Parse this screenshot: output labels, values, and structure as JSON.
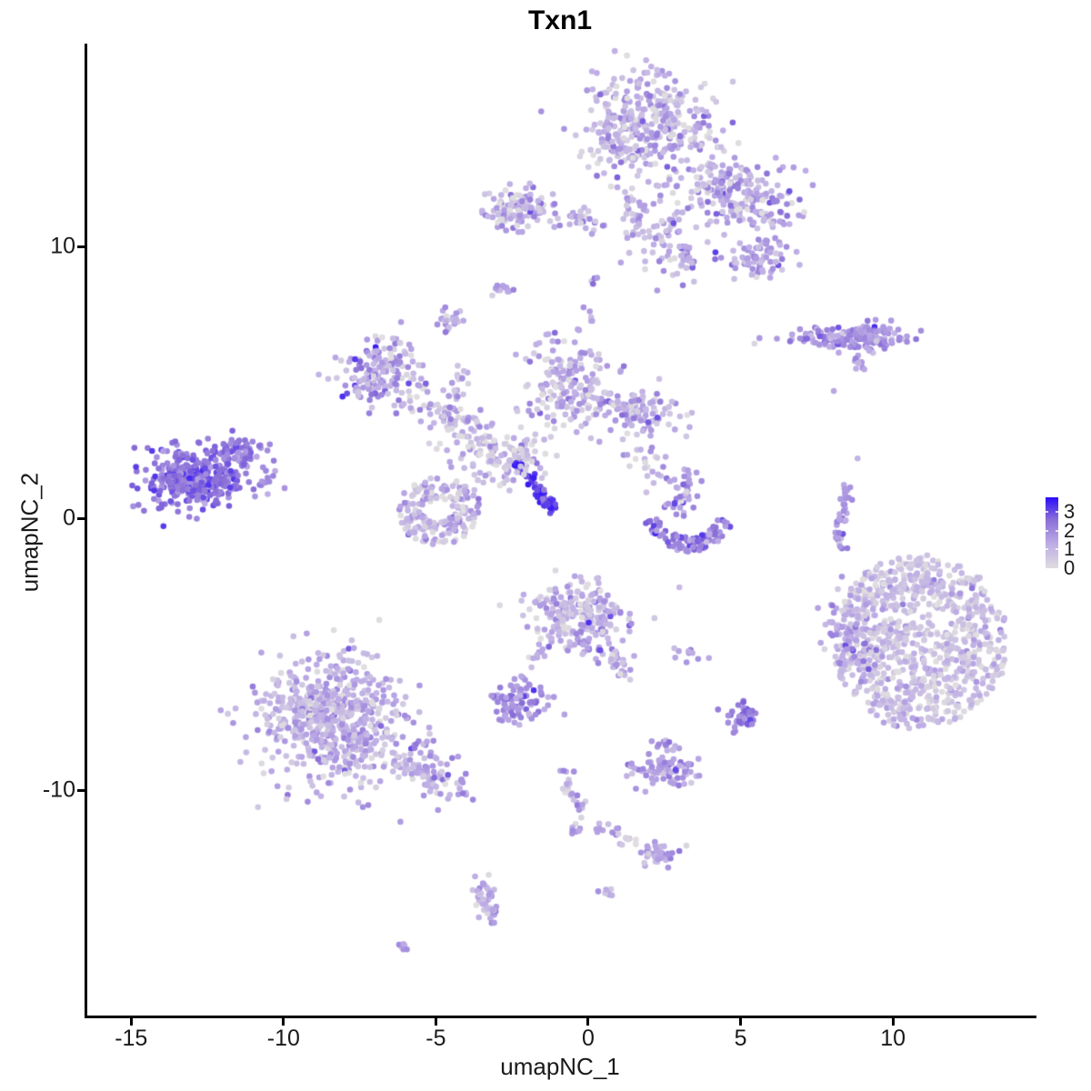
{
  "chart_data": {
    "type": "scatter",
    "title": "Txn1",
    "xlabel": "umapNC_1",
    "ylabel": "umapNC_2",
    "xlim": [
      -16.5,
      14.68
    ],
    "ylim": [
      -18.31,
      17.46
    ],
    "xticks": [
      -15,
      -10,
      -5,
      0,
      5,
      10
    ],
    "yticks": [
      10,
      0,
      -10
    ],
    "grid": false,
    "legend_position": "right",
    "point_radius_px": 3.3,
    "colorbar": {
      "ticks": [
        3,
        2,
        1,
        0
      ],
      "vmin": 0,
      "vmax": 3.8,
      "notch_values": [
        1,
        2,
        3
      ],
      "stops": [
        [
          0,
          "#DFDDDF"
        ],
        [
          1.3,
          "#BDACE5"
        ],
        [
          2.6,
          "#8A6FD8"
        ],
        [
          3.8,
          "#2A0BFA"
        ]
      ]
    },
    "seed": 42,
    "clusters": [
      {
        "id": "top-main",
        "type": "gauss",
        "cx": 1.9,
        "cy": 14.4,
        "sx": 1.05,
        "sy": 1.0,
        "rot": 0,
        "n": 380,
        "vmean": 1.1,
        "vsd": 0.75
      },
      {
        "id": "top-main-spur",
        "type": "streak",
        "x1": 1.28,
        "y1": 12.0,
        "x2": 1.73,
        "y2": 10.2,
        "jitter": 0.28,
        "n": 35,
        "vmean": 1.2,
        "vsd": 0.7
      },
      {
        "id": "top-chain",
        "type": "streak",
        "x1": 0.24,
        "y1": 9.0,
        "x2": -0.21,
        "y2": 7.0,
        "jitter": 0.14,
        "n": 10,
        "vmean": 1.1,
        "vsd": 0.6
      },
      {
        "id": "top-left-arm",
        "type": "gauss",
        "cx": -2.3,
        "cy": 11.45,
        "sx": 0.52,
        "sy": 0.42,
        "rot": 0,
        "n": 110,
        "vmean": 1.2,
        "vsd": 0.8
      },
      {
        "id": "top-left-trail",
        "type": "streak",
        "x1": -1.25,
        "y1": 11.15,
        "x2": 0.54,
        "y2": 10.8,
        "jitter": 0.2,
        "n": 30,
        "vmean": 1.1,
        "vsd": 0.7
      },
      {
        "id": "top-right-arm",
        "type": "gauss",
        "cx": 4.87,
        "cy": 11.9,
        "sx": 0.95,
        "sy": 0.65,
        "rot": -20,
        "n": 220,
        "vmean": 1.3,
        "vsd": 0.75
      },
      {
        "id": "right-arm-blob",
        "type": "gauss",
        "cx": 5.6,
        "cy": 9.5,
        "sx": 0.5,
        "sy": 0.38,
        "rot": 0,
        "n": 70,
        "vmean": 1.4,
        "vsd": 0.7
      },
      {
        "id": "arm-mini-streak",
        "type": "streak",
        "x1": 3.13,
        "y1": 9.97,
        "x2": 3.37,
        "y2": 9.36,
        "jitter": 0.13,
        "n": 18,
        "vmean": 1.9,
        "vsd": 0.5
      },
      {
        "id": "arm-scatter",
        "type": "gauss",
        "cx": 2.63,
        "cy": 10.2,
        "sx": 0.7,
        "sy": 0.7,
        "rot": 0,
        "n": 60,
        "vmean": 1.0,
        "vsd": 0.7
      },
      {
        "id": "dot-a",
        "type": "gauss",
        "cx": -2.84,
        "cy": 8.43,
        "sx": 0.15,
        "sy": 0.13,
        "rot": 0,
        "n": 12,
        "vmean": 1.5,
        "vsd": 0.5
      },
      {
        "id": "dot-b",
        "type": "gauss",
        "cx": -4.57,
        "cy": 7.29,
        "sx": 0.2,
        "sy": 0.2,
        "rot": 0,
        "n": 22,
        "vmean": 1.3,
        "vsd": 0.6
      },
      {
        "id": "left-mid",
        "type": "gauss",
        "cx": -6.63,
        "cy": 5.28,
        "sx": 0.72,
        "sy": 0.62,
        "rot": -15,
        "n": 160,
        "vmean": 1.5,
        "vsd": 0.8
      },
      {
        "id": "funnel",
        "type": "gauss",
        "cx": -0.66,
        "cy": 4.85,
        "sx": 0.65,
        "sy": 0.85,
        "rot": 0,
        "n": 170,
        "vmean": 1.1,
        "vsd": 0.7
      },
      {
        "id": "right-wing",
        "type": "gauss",
        "cx": 1.58,
        "cy": 3.95,
        "sx": 0.75,
        "sy": 0.33,
        "rot": -8,
        "n": 110,
        "vmean": 1.2,
        "vsd": 0.7
      },
      {
        "id": "wing-bridge",
        "type": "gauss",
        "cx": 2.03,
        "cy": 2.51,
        "sx": 0.5,
        "sy": 0.5,
        "rot": 0,
        "n": 25,
        "vmean": 1.1,
        "vsd": 0.6
      },
      {
        "id": "strand",
        "type": "streak",
        "x1": -4.99,
        "y1": 3.85,
        "x2": -1.85,
        "y2": 2.17,
        "jitter": 0.38,
        "n": 90,
        "vmean": 0.9,
        "vsd": 0.65
      },
      {
        "id": "ring",
        "type": "ring",
        "cx": -4.9,
        "cy": 0.27,
        "r0": 0.45,
        "r1": 1.4,
        "n": 190,
        "vmean": 0.95,
        "vsd": 0.65
      },
      {
        "id": "blue-streak",
        "type": "streak",
        "x1": -2.39,
        "y1": 2.07,
        "x2": -1.16,
        "y2": 0.27,
        "jitter": 0.1,
        "n": 55,
        "vmean": 3.2,
        "vsd": 0.35
      },
      {
        "id": "web-scatter",
        "type": "gauss",
        "cx": -3.04,
        "cy": 2.17,
        "sx": 0.85,
        "sy": 0.55,
        "rot": 0,
        "n": 80,
        "vmean": 0.85,
        "vsd": 0.6
      },
      {
        "id": "chain",
        "type": "streak",
        "x1": -4.09,
        "y1": 5.69,
        "x2": -4.54,
        "y2": 3.34,
        "jitter": 0.16,
        "n": 25,
        "vmean": 1.1,
        "vsd": 0.6
      },
      {
        "id": "bridge",
        "type": "gauss",
        "cx": -5.43,
        "cy": 4.01,
        "sx": 0.42,
        "sy": 0.3,
        "rot": 0,
        "n": 20,
        "vmean": 1.0,
        "vsd": 0.6
      },
      {
        "id": "left-island",
        "type": "gauss",
        "cx": -12.99,
        "cy": 1.47,
        "sx": 0.78,
        "sy": 0.58,
        "rot": -12,
        "n": 330,
        "vmean": 2.5,
        "vsd": 0.45
      },
      {
        "id": "left-island-ne",
        "type": "gauss",
        "cx": -11.49,
        "cy": 2.34,
        "sx": 0.4,
        "sy": 0.32,
        "rot": 0,
        "n": 80,
        "vmean": 2.4,
        "vsd": 0.45
      },
      {
        "id": "left-island-fringe",
        "type": "gauss",
        "cx": -10.6,
        "cy": 1.4,
        "sx": 0.22,
        "sy": 0.26,
        "rot": 0,
        "n": 12,
        "vmean": 2.0,
        "vsd": 0.4
      },
      {
        "id": "smile-arc",
        "type": "arc",
        "cx": 3.31,
        "cy": 0.27,
        "r0": 0.95,
        "r1": 1.5,
        "a0": 12,
        "a1": 165,
        "n": 90,
        "vmean": 2.3,
        "vsd": 0.6
      },
      {
        "id": "smile-scatter",
        "type": "gauss",
        "cx": 3.16,
        "cy": 1.07,
        "sx": 0.3,
        "sy": 0.55,
        "rot": 0,
        "n": 40,
        "vmean": 1.6,
        "vsd": 0.7
      },
      {
        "id": "east-comma",
        "type": "streak",
        "x1": 8.54,
        "y1": 1.27,
        "x2": 8.15,
        "y2": -1.0,
        "jitter": 0.12,
        "n": 35,
        "vmean": 1.8,
        "vsd": 0.5
      },
      {
        "id": "east-bar",
        "type": "gauss",
        "cx": 8.39,
        "cy": 6.66,
        "sx": 0.95,
        "sy": 0.22,
        "rot": 0,
        "n": 110,
        "vmean": 1.7,
        "vsd": 0.5
      },
      {
        "id": "east-bar-lobe",
        "type": "gauss",
        "cx": 9.4,
        "cy": 6.6,
        "sx": 0.45,
        "sy": 0.3,
        "rot": 0,
        "n": 60,
        "vmean": 1.8,
        "vsd": 0.5
      },
      {
        "id": "east-bar-tail",
        "type": "streak",
        "x1": 8.69,
        "y1": 5.95,
        "x2": 9.1,
        "y2": 5.52,
        "jitter": 0.08,
        "n": 12,
        "vmean": 1.5,
        "vsd": 0.4
      },
      {
        "id": "right-big",
        "type": "disc",
        "cx": 10.9,
        "cy": -4.55,
        "rx": 2.85,
        "ry": 3.2,
        "n": 850,
        "vmean": 0.75,
        "vsd": 0.55
      },
      {
        "id": "right-big-fringe",
        "type": "gauss",
        "cx": 8.75,
        "cy": -4.5,
        "sx": 0.45,
        "sy": 0.75,
        "rot": 0,
        "n": 70,
        "vmean": 1.5,
        "vsd": 0.6
      },
      {
        "id": "right-west-dots",
        "type": "gauss",
        "cx": 7.9,
        "cy": -4.0,
        "sx": 0.3,
        "sy": 0.9,
        "rot": 0,
        "n": 12,
        "vmean": 1.0,
        "vsd": 0.6
      },
      {
        "id": "mid-triangle",
        "type": "gauss",
        "cx": -0.33,
        "cy": -3.6,
        "sx": 0.75,
        "sy": 0.62,
        "rot": 0,
        "n": 230,
        "vmean": 1.1,
        "vsd": 0.7
      },
      {
        "id": "triangle-tail",
        "type": "streak",
        "x1": 0.63,
        "y1": -4.85,
        "x2": 1.34,
        "y2": -5.85,
        "jitter": 0.18,
        "n": 30,
        "vmean": 1.1,
        "vsd": 0.7
      },
      {
        "id": "triangle-drip",
        "type": "streak",
        "x1": -1.4,
        "y1": -4.85,
        "x2": -2.45,
        "y2": -6.19,
        "jitter": 0.12,
        "n": 12,
        "vmean": 1.2,
        "vsd": 0.6
      },
      {
        "id": "pair-dots",
        "type": "gauss",
        "cx": 3.31,
        "cy": -4.95,
        "sx": 0.28,
        "sy": 0.18,
        "rot": 0,
        "n": 10,
        "vmean": 1.3,
        "vsd": 0.5
      },
      {
        "id": "small-dense",
        "type": "gauss",
        "cx": -2.36,
        "cy": -6.76,
        "sx": 0.45,
        "sy": 0.35,
        "rot": 0,
        "n": 85,
        "vmean": 1.9,
        "vsd": 0.5
      },
      {
        "id": "se-blob",
        "type": "gauss",
        "cx": 5.04,
        "cy": -7.32,
        "sx": 0.28,
        "sy": 0.25,
        "rot": 0,
        "n": 45,
        "vmean": 2.3,
        "vsd": 0.4
      },
      {
        "id": "southwest-main",
        "type": "gauss",
        "cx": -8.33,
        "cy": -7.36,
        "sx": 1.15,
        "sy": 1.25,
        "rot": 0,
        "n": 620,
        "vmean": 1.15,
        "vsd": 0.6
      },
      {
        "id": "southwest-tail",
        "type": "streak",
        "x1": -6.18,
        "y1": -8.7,
        "x2": -4.24,
        "y2": -10.0,
        "jitter": 0.4,
        "n": 90,
        "vmean": 1.3,
        "vsd": 0.6
      },
      {
        "id": "v-trail-stem",
        "type": "streak",
        "x1": -0.93,
        "y1": -9.03,
        "x2": -0.12,
        "y2": -11.1,
        "jitter": 0.14,
        "n": 22,
        "vmean": 1.2,
        "vsd": 0.7
      },
      {
        "id": "v-trail-left",
        "type": "streak",
        "x1": -0.42,
        "y1": -11.2,
        "x2": -0.51,
        "y2": -11.9,
        "jitter": 0.1,
        "n": 8,
        "vmean": 1.2,
        "vsd": 0.6
      },
      {
        "id": "v-trail-right",
        "type": "streak",
        "x1": 0.03,
        "y1": -11.2,
        "x2": 1.07,
        "y2": -11.6,
        "jitter": 0.1,
        "n": 10,
        "vmean": 1.2,
        "vsd": 0.6
      },
      {
        "id": "south-compact",
        "type": "gauss",
        "cx": 2.51,
        "cy": -9.3,
        "sx": 0.5,
        "sy": 0.28,
        "rot": 0,
        "n": 80,
        "vmean": 1.6,
        "vsd": 0.5
      },
      {
        "id": "south-knob",
        "type": "gauss",
        "cx": 2.51,
        "cy": -8.36,
        "sx": 0.18,
        "sy": 0.18,
        "rot": 0,
        "n": 14,
        "vmean": 1.6,
        "vsd": 0.5
      },
      {
        "id": "low-blob",
        "type": "gauss",
        "cx": 2.27,
        "cy": -12.37,
        "sx": 0.33,
        "sy": 0.2,
        "rot": 0,
        "n": 35,
        "vmean": 1.3,
        "vsd": 0.6
      },
      {
        "id": "low-trail",
        "type": "streak",
        "x1": 0.87,
        "y1": -11.57,
        "x2": 1.64,
        "y2": -12.04,
        "jitter": 0.1,
        "n": 10,
        "vmean": 0.5,
        "vsd": 0.3
      },
      {
        "id": "squiggle",
        "type": "streak",
        "x1": -3.4,
        "y1": -13.38,
        "x2": -3.28,
        "y2": -14.98,
        "jitter": 0.2,
        "n": 45,
        "vmean": 1.1,
        "vsd": 0.65
      },
      {
        "id": "pair-low",
        "type": "gauss",
        "cx": 0.66,
        "cy": -13.75,
        "sx": 0.15,
        "sy": 0.12,
        "rot": 0,
        "n": 7,
        "vmean": 1.3,
        "vsd": 0.4
      },
      {
        "id": "dash",
        "type": "streak",
        "x1": -6.21,
        "y1": -15.65,
        "x2": -5.88,
        "y2": -15.95,
        "jitter": 0.06,
        "n": 9,
        "vmean": 1.5,
        "vsd": 0.4
      },
      {
        "id": "singles",
        "type": "points",
        "pts": [
          [
            8.06,
            4.68,
            1.4
          ],
          [
            -0.78,
            -7.22,
            1.5
          ],
          [
            3.22,
            3.01,
            0.6
          ],
          [
            8.84,
            2.2,
            1.1
          ],
          [
            2.99,
            -2.54,
            0.9
          ]
        ]
      }
    ]
  }
}
